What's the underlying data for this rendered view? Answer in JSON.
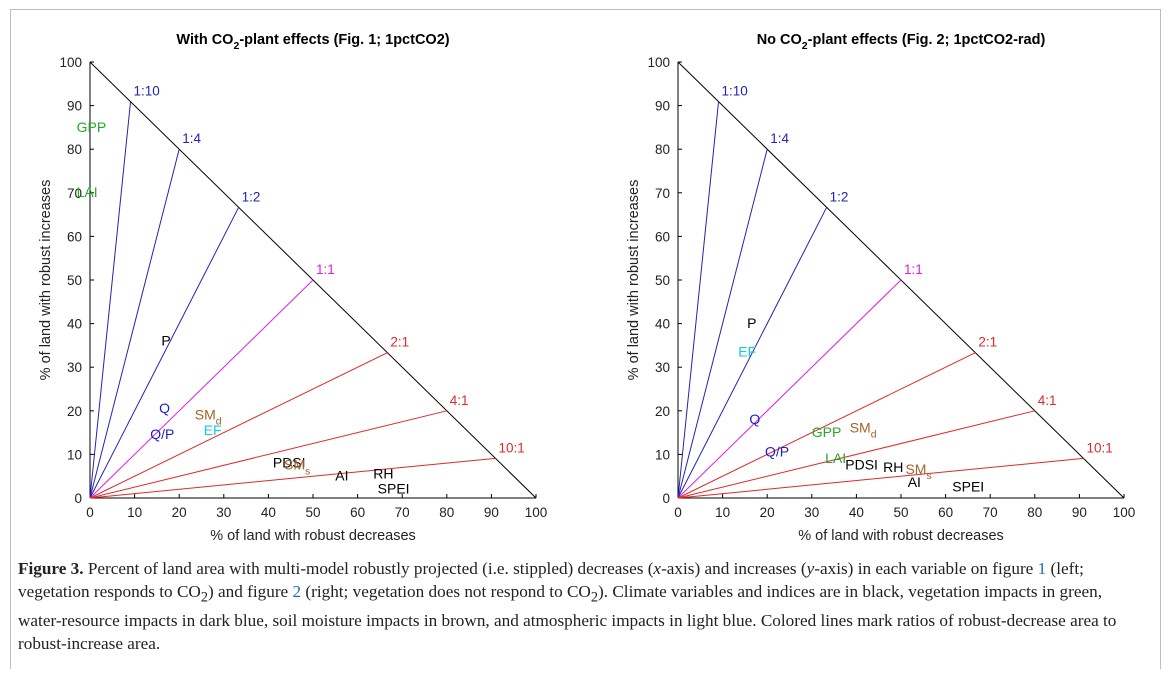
{
  "colors": {
    "axis": "#000000",
    "ratio_decrease": "#e0282a",
    "ratio_equal": "#e31ce3",
    "ratio_increase": "#2323b3",
    "vegetation": "#27a82a",
    "water": "#1f1fc4",
    "soil": "#a4622a",
    "atmospheric": "#16c9dc",
    "climate": "#000000"
  },
  "chart_data": [
    {
      "type": "scatter",
      "title_parts": [
        "With CO",
        "2",
        "-plant effects (Fig. 1; 1pctCO2)"
      ],
      "xlabel": "% of land with robust decreases",
      "ylabel": "% of land with robust increases",
      "xlim": [
        0,
        100
      ],
      "ylim": [
        0,
        100
      ],
      "ticks": [
        "0",
        "10",
        "20",
        "30",
        "40",
        "50",
        "60",
        "70",
        "80",
        "90",
        "100"
      ],
      "ratio_lines": [
        {
          "label": "1:10",
          "x": 9.09,
          "y": 90.91,
          "color": "increase"
        },
        {
          "label": "1:4",
          "x": 20,
          "y": 80,
          "color": "increase"
        },
        {
          "label": "1:2",
          "x": 33.33,
          "y": 66.67,
          "color": "increase"
        },
        {
          "label": "1:1",
          "x": 50,
          "y": 50,
          "color": "equal"
        },
        {
          "label": "2:1",
          "x": 66.67,
          "y": 33.33,
          "color": "decrease"
        },
        {
          "label": "4:1",
          "x": 80,
          "y": 20,
          "color": "decrease"
        },
        {
          "label": "10:1",
          "x": 90.91,
          "y": 9.09,
          "color": "decrease"
        }
      ],
      "points": [
        {
          "label": "GPP",
          "x": -3,
          "y": 84,
          "group": "vegetation"
        },
        {
          "label": "LAI",
          "x": -3,
          "y": 69,
          "group": "vegetation"
        },
        {
          "label": "P",
          "x": 16,
          "y": 35,
          "group": "climate"
        },
        {
          "label": "Q",
          "x": 15.5,
          "y": 19.5,
          "group": "water"
        },
        {
          "label": "Q/P",
          "x": 13.5,
          "y": 13.5,
          "group": "water"
        },
        {
          "label": "SM",
          "sub": "d",
          "x": 23.5,
          "y": 18,
          "group": "soil"
        },
        {
          "label": "EF",
          "x": 25.5,
          "y": 14.5,
          "group": "atmospheric"
        },
        {
          "label": "PDSI",
          "x": 41,
          "y": 7,
          "group": "climate"
        },
        {
          "label": "SM",
          "sub": "s",
          "x": 43.5,
          "y": 6.5,
          "group": "soil"
        },
        {
          "label": "AI",
          "x": 55,
          "y": 4,
          "group": "climate"
        },
        {
          "label": "RH",
          "x": 63.5,
          "y": 4.5,
          "group": "climate"
        },
        {
          "label": "SPEI",
          "x": 64.5,
          "y": 1,
          "group": "climate"
        }
      ]
    },
    {
      "type": "scatter",
      "title_parts": [
        "No CO",
        "2",
        "-plant effects (Fig. 2; 1pctCO2-rad)"
      ],
      "xlabel": "% of land with robust decreases",
      "ylabel": "% of land with robust increases",
      "xlim": [
        0,
        100
      ],
      "ylim": [
        0,
        100
      ],
      "ticks": [
        "0",
        "10",
        "20",
        "30",
        "40",
        "50",
        "60",
        "70",
        "80",
        "90",
        "100"
      ],
      "ratio_lines": [
        {
          "label": "1:10",
          "x": 9.09,
          "y": 90.91,
          "color": "increase"
        },
        {
          "label": "1:4",
          "x": 20,
          "y": 80,
          "color": "increase"
        },
        {
          "label": "1:2",
          "x": 33.33,
          "y": 66.67,
          "color": "increase"
        },
        {
          "label": "1:1",
          "x": 50,
          "y": 50,
          "color": "equal"
        },
        {
          "label": "2:1",
          "x": 66.67,
          "y": 33.33,
          "color": "decrease"
        },
        {
          "label": "4:1",
          "x": 80,
          "y": 20,
          "color": "decrease"
        },
        {
          "label": "10:1",
          "x": 90.91,
          "y": 9.09,
          "color": "decrease"
        }
      ],
      "points": [
        {
          "label": "P",
          "x": 15.5,
          "y": 39,
          "group": "climate"
        },
        {
          "label": "EF",
          "x": 13.5,
          "y": 32.5,
          "group": "atmospheric"
        },
        {
          "label": "Q",
          "x": 16,
          "y": 17,
          "group": "water"
        },
        {
          "label": "Q/P",
          "x": 19.5,
          "y": 9.5,
          "group": "water"
        },
        {
          "label": "GPP",
          "x": 30,
          "y": 14,
          "group": "vegetation"
        },
        {
          "label": "SM",
          "sub": "d",
          "x": 38.5,
          "y": 15,
          "group": "soil"
        },
        {
          "label": "LAI",
          "x": 33,
          "y": 8,
          "group": "vegetation"
        },
        {
          "label": "PDSI",
          "x": 37.5,
          "y": 6.5,
          "group": "climate"
        },
        {
          "label": "RH",
          "x": 46,
          "y": 6,
          "group": "climate"
        },
        {
          "label": "SM",
          "sub": "s",
          "x": 51,
          "y": 5.5,
          "group": "soil"
        },
        {
          "label": "AI",
          "x": 51.5,
          "y": 2.5,
          "group": "climate"
        },
        {
          "label": "SPEI",
          "x": 61.5,
          "y": 1.5,
          "group": "climate"
        }
      ]
    }
  ],
  "caption": {
    "label": "Figure 3.",
    "p1": " Percent of land area with multi-model robustly projected (i.e. stippled) decreases (",
    "x_italic": "x",
    "p2": "-axis) and increases (",
    "y_italic": "y",
    "p3": "-axis) in each variable on figure ",
    "ref1": "1",
    "p4": " (left; vegetation responds to CO",
    "sub1": "2",
    "p5": ") and figure ",
    "ref2": "2",
    "p6": " (right; vegetation does not respond to CO",
    "sub2": "2",
    "p7": "). Climate variables and indices are in black, vegetation impacts in green, water-resource impacts in dark blue, soil moisture impacts in brown, and atmospheric impacts in light blue. Colored lines mark ratios of robust-decrease area to robust-increase area."
  }
}
